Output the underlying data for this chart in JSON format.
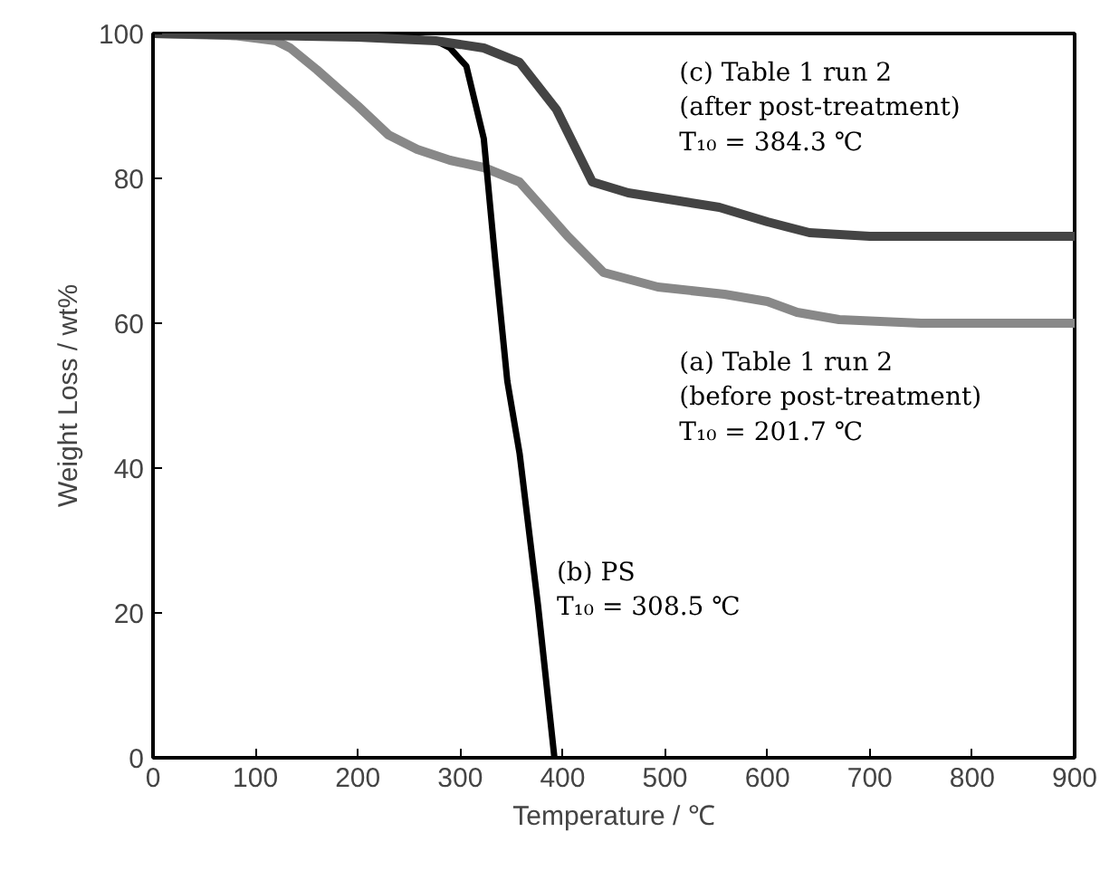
{
  "chart_data": {
    "type": "line",
    "xlabel": "Temperature / ℃",
    "ylabel": "Weight Loss / wt%",
    "xlim": [
      0,
      900
    ],
    "ylim": [
      0,
      100
    ],
    "xticks": [
      0,
      100,
      200,
      300,
      400,
      500,
      600,
      700,
      800,
      900
    ],
    "yticks": [
      0,
      20,
      40,
      60,
      80,
      100
    ],
    "grid": false,
    "marker": "none",
    "line_style": "solid",
    "series": [
      {
        "color": "#888888",
        "x": [
          0,
          80,
          120,
          134,
          160,
          200,
          230,
          258,
          290,
          323,
          358,
          380,
          405,
          440,
          493,
          558,
          600,
          629,
          670,
          750,
          900
        ],
        "values": [
          100,
          99.7,
          99,
          98,
          95,
          90,
          86,
          84,
          82.5,
          81.5,
          79.5,
          76,
          72,
          67,
          65,
          64,
          63,
          61.5,
          60.5,
          60,
          60
        ]
      },
      {
        "color": "#000000",
        "x": [
          0,
          200,
          260,
          276,
          290,
          306,
          323,
          334,
          346,
          358,
          376,
          392
        ],
        "values": [
          100,
          99.5,
          99.3,
          99,
          98,
          95.5,
          85.5,
          69,
          52,
          42,
          21,
          0
        ]
      },
      {
        "color": "#444444",
        "x": [
          0,
          200,
          276,
          323,
          358,
          394,
          429,
          464,
          553,
          600,
          641,
          700,
          900
        ],
        "values": [
          100,
          99.5,
          99,
          98,
          96,
          89.5,
          79.5,
          78,
          76,
          74,
          72.5,
          72,
          72
        ]
      }
    ],
    "annotations": [
      "(c) Table 1 run 2\n(after post-treatment)\nT₁₀ = 384.3 ℃",
      "(a) Table 1 run 2\n(before post-treatment)\nT₁₀ = 201.7 ℃",
      "(b) PS\nT₁₀ = 308.5 ℃"
    ]
  }
}
